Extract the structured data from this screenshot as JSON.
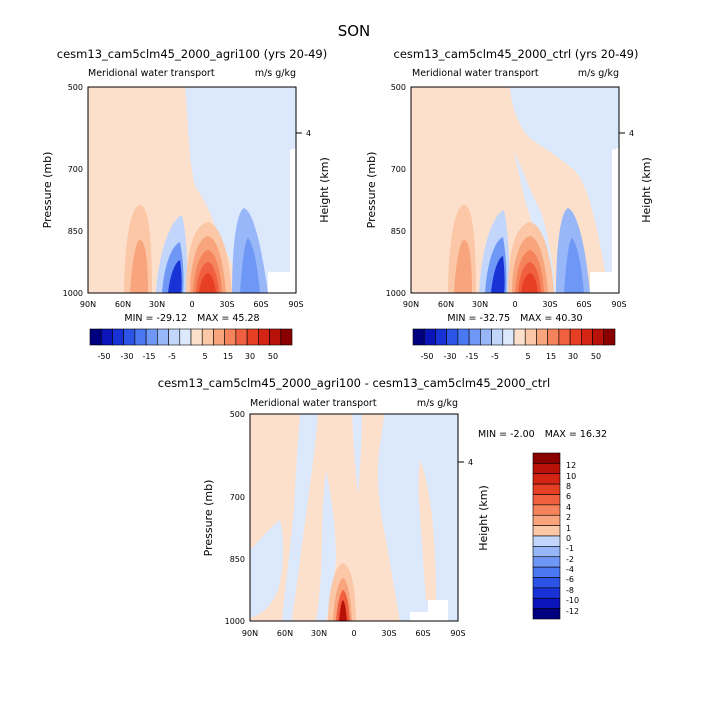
{
  "figure": {
    "title": "SON",
    "colors": {
      "neg": [
        "#00007f",
        "#0a14b8",
        "#1832d6",
        "#2c55e8",
        "#4a78f2",
        "#6f98f6",
        "#98b7f9",
        "#c2d6fb",
        "#dce8fc"
      ],
      "pos": [
        "#fce0cc",
        "#fbc7a6",
        "#f8a57d",
        "#f5845c",
        "#f06040",
        "#e73f23",
        "#d52314",
        "#b81108",
        "#8a0000"
      ]
    }
  },
  "chart_data": [
    {
      "type": "contour",
      "panel": "top-left",
      "title": "cesm13_cam5clm45_2000_agri100 (yrs 20-49)",
      "subtitle": "Meridional water transport",
      "units": "m/s g/kg",
      "ylabel": "Pressure (mb)",
      "y2label": "Height (km)",
      "y2ticks": [
        "4"
      ],
      "xticks": [
        "90N",
        "60N",
        "30N",
        "0",
        "30S",
        "60S",
        "90S"
      ],
      "yticks": [
        "500",
        "700",
        "850",
        "1000"
      ],
      "yrange": [
        500,
        1000
      ],
      "min_label": "MIN = ",
      "min_value": "-29.12",
      "max_label": "MAX = ",
      "max_value": "45.28",
      "colorbar": {
        "orientation": "horizontal",
        "labels": [
          "-50",
          "-30",
          "-15",
          "-5",
          "5",
          "15",
          "30",
          "50"
        ]
      }
    },
    {
      "type": "contour",
      "panel": "top-right",
      "title": "cesm13_cam5clm45_2000_ctrl (yrs 20-49)",
      "subtitle": "Meridional water transport",
      "units": "m/s g/kg",
      "ylabel": "Pressure (mb)",
      "y2label": "Height (km)",
      "y2ticks": [
        "4"
      ],
      "xticks": [
        "90N",
        "60N",
        "30N",
        "0",
        "30S",
        "60S",
        "90S"
      ],
      "yticks": [
        "500",
        "700",
        "850",
        "1000"
      ],
      "yrange": [
        500,
        1000
      ],
      "min_label": "MIN = ",
      "min_value": "-32.75",
      "max_label": "MAX = ",
      "max_value": "40.30",
      "colorbar": {
        "orientation": "horizontal",
        "labels": [
          "-50",
          "-30",
          "-15",
          "-5",
          "5",
          "15",
          "30",
          "50"
        ]
      }
    },
    {
      "type": "contour",
      "panel": "bottom",
      "title": "cesm13_cam5clm45_2000_agri100 - cesm13_cam5clm45_2000_ctrl",
      "subtitle": "Meridional water transport",
      "units": "m/s g/kg",
      "ylabel": "Pressure (mb)",
      "y2label": "Height (km)",
      "y2ticks": [
        "4"
      ],
      "xticks": [
        "90N",
        "60N",
        "30N",
        "0",
        "30S",
        "60S",
        "90S"
      ],
      "yticks": [
        "500",
        "700",
        "850",
        "1000"
      ],
      "yrange": [
        500,
        1000
      ],
      "min_label": "MIN = ",
      "min_value": "-2.00",
      "max_label": "MAX = ",
      "max_value": "16.32",
      "colorbar": {
        "orientation": "vertical",
        "labels": [
          "12",
          "10",
          "8",
          "6",
          "4",
          "2",
          "1",
          "0",
          "-1",
          "-2",
          "-4",
          "-6",
          "-8",
          "-10",
          "-12"
        ]
      }
    }
  ]
}
